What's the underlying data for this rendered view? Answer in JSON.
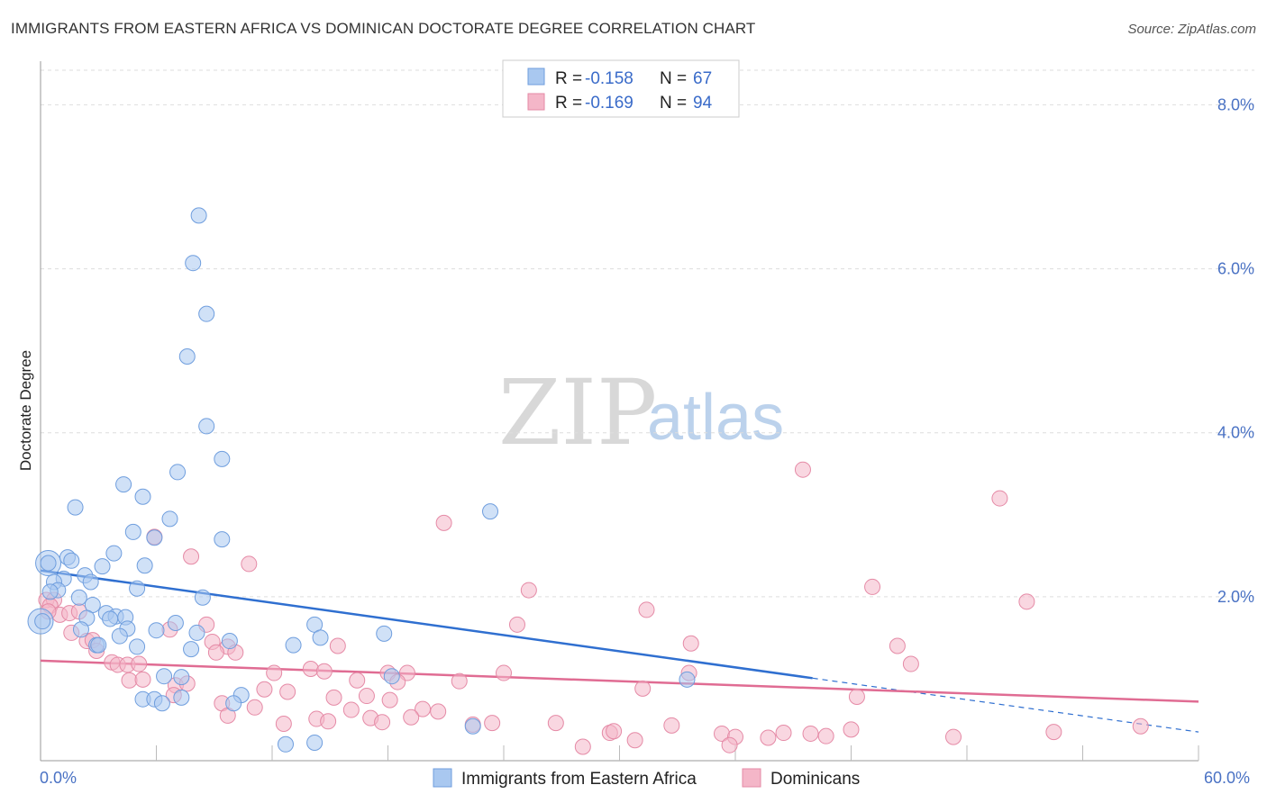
{
  "title": "IMMIGRANTS FROM EASTERN AFRICA VS DOMINICAN DOCTORATE DEGREE CORRELATION CHART",
  "source": "Source: ZipAtlas.com",
  "watermark": {
    "zip": "ZIP",
    "atlas": "atlas"
  },
  "colors": {
    "blue_fill": "#a9c8f0",
    "blue_stroke": "#6f9ede",
    "blue_line": "#2f6fd0",
    "pink_fill": "#f4b6c8",
    "pink_stroke": "#e58aa6",
    "pink_line": "#e06c93",
    "axis_label": "#4a72c4",
    "grid": "#dddddd"
  },
  "chart_data": {
    "type": "scatter",
    "title": "IMMIGRANTS FROM EASTERN AFRICA VS DOMINICAN DOCTORATE DEGREE CORRELATION CHART",
    "xlabel": "",
    "ylabel": "Doctorate Degree",
    "xlim": [
      0,
      60
    ],
    "ylim": [
      0,
      8.4
    ],
    "x_tick_labels": [
      "0.0%",
      "60.0%"
    ],
    "y_ticks": [
      2,
      4,
      6,
      8
    ],
    "y_tick_labels": [
      "2.0%",
      "4.0%",
      "6.0%",
      "8.0%"
    ],
    "legend": [
      {
        "name": "Immigrants from Eastern Africa",
        "r_label": "R =",
        "r_value": "-0.158",
        "n_label": "N =",
        "n_value": "67"
      },
      {
        "name": "Dominicans",
        "r_label": "R =",
        "r_value": "-0.169",
        "n_label": "N =",
        "n_value": "94"
      }
    ],
    "series": [
      {
        "name": "Immigrants from Eastern Africa",
        "color": "blue",
        "trend": {
          "x0": 0,
          "y0": 2.32,
          "x1": 60,
          "y1": 0.35,
          "solid_until": 40
        },
        "points": [
          [
            8.2,
            6.65
          ],
          [
            7.9,
            6.07
          ],
          [
            8.6,
            5.45
          ],
          [
            7.6,
            4.93
          ],
          [
            8.6,
            4.08
          ],
          [
            9.4,
            3.68
          ],
          [
            7.1,
            3.52
          ],
          [
            4.3,
            3.37
          ],
          [
            1.8,
            3.09
          ],
          [
            5.3,
            3.22
          ],
          [
            6.7,
            2.95
          ],
          [
            23.3,
            3.04
          ],
          [
            4.8,
            2.79
          ],
          [
            5.9,
            2.72
          ],
          [
            9.4,
            2.7
          ],
          [
            3.8,
            2.53
          ],
          [
            1.4,
            2.48
          ],
          [
            1.6,
            2.44
          ],
          [
            0.4,
            2.41
          ],
          [
            5.4,
            2.38
          ],
          [
            3.2,
            2.37
          ],
          [
            2.3,
            2.26
          ],
          [
            1.2,
            2.22
          ],
          [
            0.7,
            2.18
          ],
          [
            2.6,
            2.18
          ],
          [
            0.9,
            2.08
          ],
          [
            0.5,
            2.06
          ],
          [
            5.0,
            2.1
          ],
          [
            8.4,
            1.99
          ],
          [
            2.0,
            1.99
          ],
          [
            2.7,
            1.9
          ],
          [
            0.1,
            1.7
          ],
          [
            3.4,
            1.8
          ],
          [
            3.9,
            1.76
          ],
          [
            4.4,
            1.75
          ],
          [
            2.4,
            1.74
          ],
          [
            3.6,
            1.73
          ],
          [
            7.0,
            1.68
          ],
          [
            14.2,
            1.66
          ],
          [
            2.1,
            1.6
          ],
          [
            4.5,
            1.61
          ],
          [
            6.0,
            1.59
          ],
          [
            8.1,
            1.56
          ],
          [
            14.5,
            1.5
          ],
          [
            17.8,
            1.55
          ],
          [
            4.1,
            1.52
          ],
          [
            9.8,
            1.46
          ],
          [
            13.1,
            1.41
          ],
          [
            2.9,
            1.41
          ],
          [
            3.0,
            1.41
          ],
          [
            5.0,
            1.39
          ],
          [
            7.8,
            1.36
          ],
          [
            18.2,
            1.03
          ],
          [
            6.4,
            1.03
          ],
          [
            7.3,
            1.02
          ],
          [
            33.5,
            0.99
          ],
          [
            10.4,
            0.8
          ],
          [
            5.3,
            0.75
          ],
          [
            5.9,
            0.75
          ],
          [
            7.3,
            0.77
          ],
          [
            10.0,
            0.7
          ],
          [
            6.3,
            0.7
          ],
          [
            22.4,
            0.42
          ],
          [
            12.7,
            0.2
          ],
          [
            14.2,
            0.22
          ]
        ],
        "large_points": [
          [
            0.0,
            1.7
          ],
          [
            0.4,
            2.41
          ]
        ]
      },
      {
        "name": "Dominicans",
        "color": "pink",
        "trend": {
          "x0": 0,
          "y0": 1.22,
          "x1": 60,
          "y1": 0.72
        },
        "points": [
          [
            39.5,
            3.55
          ],
          [
            49.7,
            3.2
          ],
          [
            20.9,
            2.9
          ],
          [
            5.9,
            2.73
          ],
          [
            7.8,
            2.49
          ],
          [
            10.8,
            2.4
          ],
          [
            25.3,
            2.08
          ],
          [
            43.1,
            2.12
          ],
          [
            51.1,
            1.94
          ],
          [
            0.3,
            1.96
          ],
          [
            0.7,
            1.96
          ],
          [
            0.5,
            1.89
          ],
          [
            1.0,
            1.78
          ],
          [
            0.4,
            1.82
          ],
          [
            31.4,
            1.84
          ],
          [
            1.5,
            1.8
          ],
          [
            2.0,
            1.82
          ],
          [
            24.7,
            1.66
          ],
          [
            8.6,
            1.66
          ],
          [
            6.7,
            1.6
          ],
          [
            1.6,
            1.56
          ],
          [
            2.4,
            1.46
          ],
          [
            2.7,
            1.47
          ],
          [
            8.9,
            1.45
          ],
          [
            9.7,
            1.39
          ],
          [
            10.1,
            1.32
          ],
          [
            9.1,
            1.32
          ],
          [
            15.4,
            1.4
          ],
          [
            33.7,
            1.43
          ],
          [
            44.4,
            1.4
          ],
          [
            2.9,
            1.34
          ],
          [
            3.7,
            1.2
          ],
          [
            4.0,
            1.17
          ],
          [
            4.5,
            1.17
          ],
          [
            5.1,
            1.18
          ],
          [
            14.0,
            1.12
          ],
          [
            12.1,
            1.07
          ],
          [
            14.7,
            1.09
          ],
          [
            18.0,
            1.07
          ],
          [
            19.0,
            1.07
          ],
          [
            24.0,
            1.07
          ],
          [
            33.6,
            1.07
          ],
          [
            45.1,
            1.18
          ],
          [
            16.4,
            0.98
          ],
          [
            18.5,
            0.96
          ],
          [
            21.7,
            0.97
          ],
          [
            4.6,
            0.98
          ],
          [
            5.3,
            0.99
          ],
          [
            7.0,
            0.92
          ],
          [
            7.6,
            0.94
          ],
          [
            11.6,
            0.87
          ],
          [
            12.8,
            0.84
          ],
          [
            15.2,
            0.77
          ],
          [
            16.9,
            0.79
          ],
          [
            18.1,
            0.74
          ],
          [
            31.2,
            0.88
          ],
          [
            42.3,
            0.78
          ],
          [
            6.9,
            0.8
          ],
          [
            9.4,
            0.7
          ],
          [
            11.1,
            0.65
          ],
          [
            16.1,
            0.62
          ],
          [
            19.8,
            0.63
          ],
          [
            20.6,
            0.6
          ],
          [
            14.3,
            0.51
          ],
          [
            14.9,
            0.48
          ],
          [
            17.1,
            0.52
          ],
          [
            19.2,
            0.53
          ],
          [
            9.7,
            0.55
          ],
          [
            12.6,
            0.45
          ],
          [
            17.7,
            0.47
          ],
          [
            22.4,
            0.44
          ],
          [
            23.4,
            0.46
          ],
          [
            26.7,
            0.46
          ],
          [
            29.5,
            0.34
          ],
          [
            32.7,
            0.43
          ],
          [
            35.3,
            0.33
          ],
          [
            36.0,
            0.29
          ],
          [
            38.5,
            0.34
          ],
          [
            39.9,
            0.33
          ],
          [
            40.7,
            0.3
          ],
          [
            42.0,
            0.38
          ],
          [
            47.3,
            0.29
          ],
          [
            52.5,
            0.35
          ],
          [
            57.0,
            0.42
          ],
          [
            28.1,
            0.17
          ],
          [
            29.7,
            0.36
          ],
          [
            30.8,
            0.25
          ],
          [
            35.7,
            0.19
          ],
          [
            37.7,
            0.28
          ]
        ]
      }
    ]
  }
}
